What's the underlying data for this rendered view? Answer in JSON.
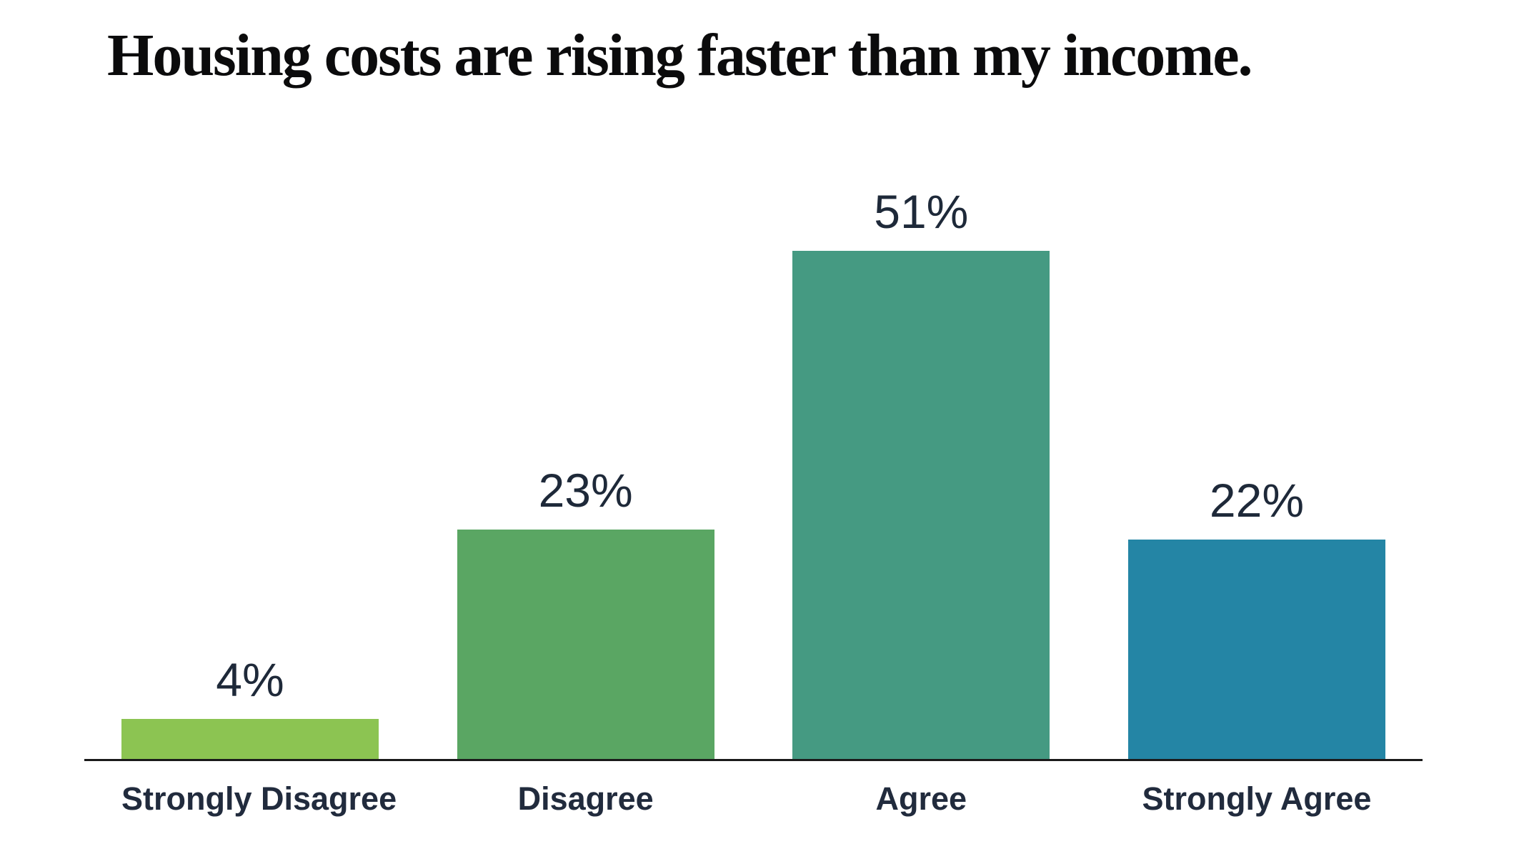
{
  "title": "Housing costs are rising faster than my income.",
  "chart_data": {
    "type": "bar",
    "title": "Housing costs are rising faster than my income.",
    "categories": [
      "Strongly Disagree",
      "Disagree",
      "Agree",
      "Strongly Agree"
    ],
    "values": [
      4,
      23,
      51,
      22
    ],
    "value_labels": [
      "4%",
      "23%",
      "51%",
      "22%"
    ],
    "xlabel": "",
    "ylabel": "",
    "ylim": [
      0,
      55
    ],
    "grid": false,
    "legend": null,
    "bar_colors": [
      "#8cc452",
      "#5aa663",
      "#459a82",
      "#2485a5"
    ],
    "value_label_color": "#1e2939",
    "category_label_color": "#212b3d",
    "axis_color": "#1a1a1a",
    "background_color": "#ffffff",
    "title_color": "#0b0b0c"
  }
}
